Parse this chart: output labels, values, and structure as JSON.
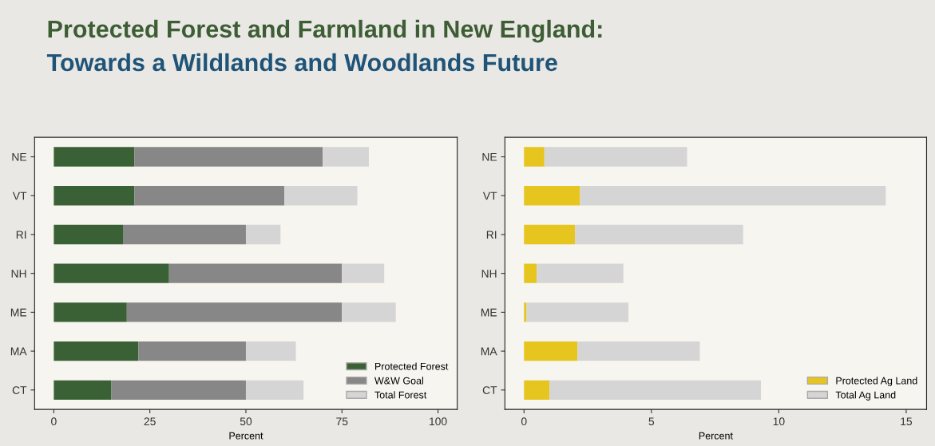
{
  "chart_data": [
    {
      "type": "bar",
      "orientation": "horizontal",
      "stacked": true,
      "title": "Protected Forest and Farmland in New England:",
      "subtitle": "Towards a Wildlands and Woodlands Future",
      "xlabel": "Percent",
      "categories": [
        "NE",
        "VT",
        "RI",
        "NH",
        "ME",
        "MA",
        "CT"
      ],
      "series": [
        {
          "name": "Protected Forest",
          "color": "#3a6135",
          "values": [
            21,
            21,
            18,
            30,
            19,
            22,
            15
          ]
        },
        {
          "name": "W&W Goal",
          "color": "#878787",
          "values": [
            49,
            39,
            32,
            45,
            56,
            28,
            35
          ]
        },
        {
          "name": "Total Forest",
          "color": "#d6d5d5",
          "values": [
            12,
            19,
            9,
            11,
            14,
            13,
            15
          ]
        }
      ],
      "xlim": [
        -5,
        105
      ],
      "xticks": [
        0,
        25,
        50,
        75,
        100
      ],
      "grid": false,
      "legend": "bottom right"
    },
    {
      "type": "bar",
      "orientation": "horizontal",
      "stacked": true,
      "xlabel": "Percent",
      "categories": [
        "NE",
        "VT",
        "RI",
        "NH",
        "ME",
        "MA",
        "CT"
      ],
      "series": [
        {
          "name": "Protected Ag Land",
          "color": "#e6c51e",
          "values": [
            0.8,
            2.2,
            2.0,
            0.5,
            0.1,
            2.1,
            1.0
          ]
        },
        {
          "name": "Total Ag Land",
          "color": "#d6d5d5",
          "values": [
            5.6,
            12.0,
            6.6,
            3.4,
            4.0,
            4.8,
            8.3
          ]
        }
      ],
      "xlim": [
        -0.75,
        15.8
      ],
      "xticks": [
        0,
        5,
        10,
        15
      ],
      "grid": false,
      "legend": "bottom right"
    }
  ]
}
